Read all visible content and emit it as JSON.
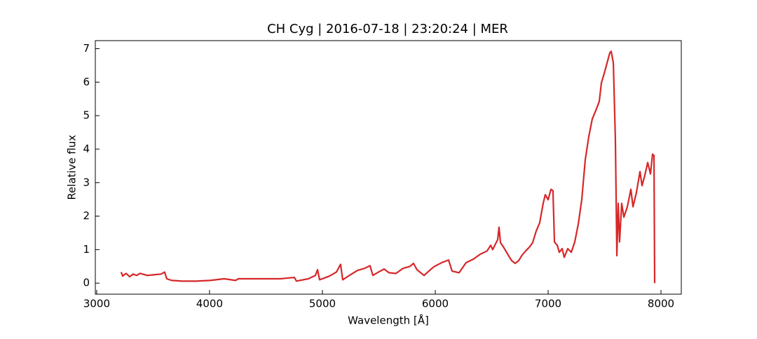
{
  "chart_data": {
    "type": "line",
    "title": "CH Cyg | 2016-07-18 | 23:20:24 | MER",
    "xlabel": "Wavelength [Å]",
    "ylabel": "Relative flux",
    "xlim": [
      2988,
      8180
    ],
    "ylim": [
      -0.33,
      7.24
    ],
    "xticks": [
      3000,
      4000,
      5000,
      6000,
      7000,
      8000
    ],
    "yticks": [
      0,
      1,
      2,
      3,
      4,
      5,
      6,
      7
    ],
    "grid": false,
    "series": [
      {
        "color": "#d62728",
        "x": [
          3217,
          3230,
          3261,
          3292,
          3323,
          3354,
          3385,
          3447,
          3509,
          3571,
          3602,
          3621,
          3665,
          3758,
          3882,
          4006,
          4130,
          4230,
          4255,
          4503,
          4627,
          4752,
          4770,
          4876,
          4938,
          4957,
          4975,
          5062,
          5124,
          5161,
          5180,
          5248,
          5311,
          5373,
          5422,
          5447,
          5497,
          5547,
          5590,
          5652,
          5714,
          5776,
          5807,
          5838,
          5901,
          5963,
          5994,
          6056,
          6118,
          6149,
          6211,
          6273,
          6335,
          6397,
          6459,
          6491,
          6509,
          6553,
          6565,
          6578,
          6602,
          6646,
          6677,
          6708,
          6739,
          6770,
          6801,
          6838,
          6863,
          6894,
          6925,
          6956,
          6975,
          7000,
          7025,
          7043,
          7056,
          7081,
          7099,
          7124,
          7143,
          7174,
          7205,
          7236,
          7267,
          7298,
          7329,
          7360,
          7391,
          7422,
          7453,
          7472,
          7497,
          7522,
          7547,
          7559,
          7578,
          7596,
          7609,
          7621,
          7633,
          7652,
          7671,
          7702,
          7733,
          7752,
          7782,
          7814,
          7832,
          7857,
          7882,
          7907,
          7925,
          7938,
          7944
        ],
        "values": [
          0.33,
          0.21,
          0.29,
          0.19,
          0.27,
          0.23,
          0.29,
          0.23,
          0.25,
          0.27,
          0.33,
          0.13,
          0.08,
          0.06,
          0.06,
          0.08,
          0.13,
          0.08,
          0.13,
          0.13,
          0.13,
          0.17,
          0.06,
          0.13,
          0.23,
          0.4,
          0.1,
          0.21,
          0.33,
          0.56,
          0.1,
          0.25,
          0.38,
          0.44,
          0.52,
          0.23,
          0.33,
          0.42,
          0.31,
          0.29,
          0.44,
          0.5,
          0.59,
          0.4,
          0.23,
          0.42,
          0.5,
          0.61,
          0.69,
          0.36,
          0.31,
          0.61,
          0.71,
          0.86,
          0.96,
          1.13,
          1.0,
          1.3,
          1.67,
          1.21,
          1.09,
          0.84,
          0.67,
          0.59,
          0.67,
          0.84,
          0.96,
          1.09,
          1.21,
          1.55,
          1.8,
          2.38,
          2.64,
          2.49,
          2.8,
          2.76,
          1.23,
          1.13,
          0.92,
          1.03,
          0.77,
          1.03,
          0.92,
          1.23,
          1.76,
          2.49,
          3.68,
          4.37,
          4.9,
          5.15,
          5.42,
          5.98,
          6.26,
          6.57,
          6.88,
          6.92,
          6.57,
          4.27,
          0.82,
          2.38,
          1.23,
          2.38,
          1.97,
          2.28,
          2.8,
          2.28,
          2.7,
          3.33,
          2.91,
          3.22,
          3.6,
          3.26,
          3.85,
          3.81,
          0
        ]
      }
    ]
  }
}
